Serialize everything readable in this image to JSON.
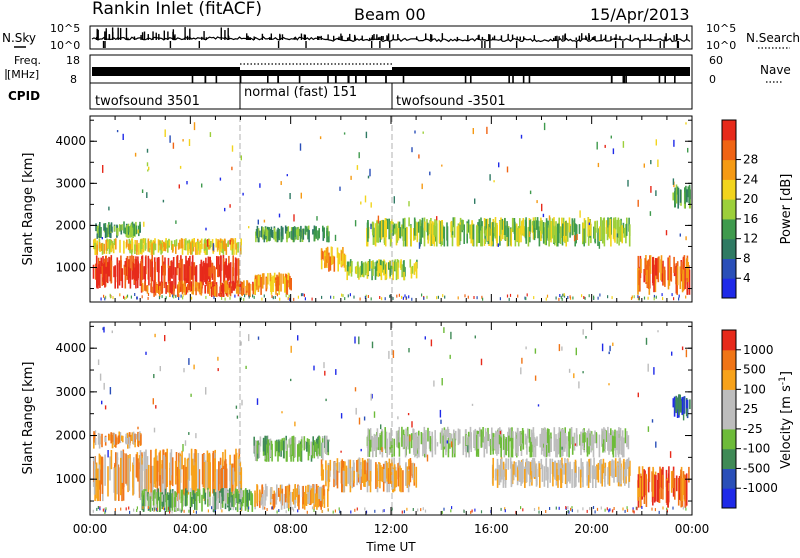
{
  "header": {
    "station": "Rankin Inlet (fitACF)",
    "beam": "Beam 00",
    "date": "15/Apr/2013"
  },
  "aux_panels": {
    "nsky_label": "N.Sky",
    "nsearch_label": "N.Search",
    "noise_top_tick": "10^5",
    "noise_bottom_tick": "10^0",
    "freq_label_1": "Freq.",
    "freq_label_2": "[MHz]",
    "freq_ticks": [
      "18",
      "8"
    ],
    "nave_label": "Nave",
    "nave_ticks": [
      "60",
      "0"
    ],
    "cpid_label": "CPID",
    "cpid_segments": [
      {
        "name": "twofsound 3501",
        "start_h": 0,
        "end_h": 6
      },
      {
        "name": "normal (fast) 151",
        "start_h": 6,
        "end_h": 12
      },
      {
        "name": "twofsound -3501",
        "start_h": 12,
        "end_h": 24
      }
    ]
  },
  "chart_data": [
    {
      "type": "heatmap",
      "panel": "power",
      "ylabel": "Slant Range [km]",
      "ylim": [
        180,
        4600
      ],
      "y_ticks": [
        1000,
        2000,
        3000,
        4000
      ],
      "x_range_h": [
        0,
        24
      ],
      "colorbar": {
        "label": "Power [dB]",
        "ticks": [
          "4",
          "8",
          "12",
          "16",
          "20",
          "24",
          "28"
        ],
        "colors": [
          "#1f2ae8",
          "#2a4fb8",
          "#2f7a63",
          "#3f9a4d",
          "#9ccf3a",
          "#f2d41d",
          "#f59a14",
          "#f06414",
          "#e72a1b"
        ]
      },
      "regions": [
        {
          "t0": 0.1,
          "t1": 6.0,
          "r0": 500,
          "r1": 1300,
          "level": 8
        },
        {
          "t0": 0.1,
          "t1": 6.0,
          "r0": 1300,
          "r1": 1700,
          "level": 5
        },
        {
          "t0": 0.1,
          "t1": 2.0,
          "r0": 1700,
          "r1": 2100,
          "level": 3
        },
        {
          "t0": 2.0,
          "t1": 6.5,
          "r0": 300,
          "r1": 700,
          "level": 7
        },
        {
          "t0": 6.5,
          "t1": 8.0,
          "r0": 350,
          "r1": 900,
          "level": 6
        },
        {
          "t0": 6.5,
          "t1": 9.5,
          "r0": 1600,
          "r1": 2000,
          "level": 3
        },
        {
          "t0": 9.2,
          "t1": 10.2,
          "r0": 900,
          "r1": 1500,
          "level": 6
        },
        {
          "t0": 10.2,
          "t1": 13.0,
          "r0": 700,
          "r1": 1200,
          "level": 4
        },
        {
          "t0": 11.0,
          "t1": 21.5,
          "r0": 1500,
          "r1": 2200,
          "level": 4
        },
        {
          "t0": 21.8,
          "t1": 23.9,
          "r0": 350,
          "r1": 1300,
          "level": 7
        },
        {
          "t0": 23.2,
          "t1": 23.9,
          "r0": 2400,
          "r1": 3000,
          "level": 3
        }
      ]
    },
    {
      "type": "heatmap",
      "panel": "velocity",
      "ylabel": "Slant Range [km]",
      "xlabel": "Time UT",
      "ylim": [
        180,
        4600
      ],
      "y_ticks": [
        1000,
        2000,
        3000,
        4000
      ],
      "x_range_h": [
        0,
        24
      ],
      "x_ticks": [
        "00:00",
        "04:00",
        "08:00",
        "12:00",
        "16:00",
        "20:00",
        "00:00"
      ],
      "colorbar": {
        "label": "Velocity [m s^-1]",
        "ticks": [
          "1000",
          "500",
          "100",
          "25",
          "-25",
          "-100",
          "-500",
          "-1000"
        ],
        "colors": [
          "#1f2ae8",
          "#2a4fb8",
          "#3f8a56",
          "#6dbb39",
          "#bdbdbd",
          "#bdbdbd",
          "#f7a21a",
          "#f07517",
          "#e72a1b"
        ]
      },
      "regions": [
        {
          "t0": 0.1,
          "t1": 6.0,
          "r0": 500,
          "r1": 1700,
          "level": 6
        },
        {
          "t0": 0.1,
          "t1": 2.0,
          "r0": 1700,
          "r1": 2100,
          "level": 6
        },
        {
          "t0": 2.0,
          "t1": 6.5,
          "r0": 250,
          "r1": 800,
          "level": 3
        },
        {
          "t0": 6.5,
          "t1": 9.5,
          "r0": 1400,
          "r1": 2000,
          "level": 3
        },
        {
          "t0": 6.5,
          "t1": 9.5,
          "r0": 300,
          "r1": 900,
          "level": 6
        },
        {
          "t0": 9.2,
          "t1": 13.0,
          "r0": 700,
          "r1": 1500,
          "level": 6
        },
        {
          "t0": 11.0,
          "t1": 21.5,
          "r0": 1500,
          "r1": 2200,
          "level": 4
        },
        {
          "t0": 16.0,
          "t1": 21.5,
          "r0": 800,
          "r1": 1500,
          "level": 5
        },
        {
          "t0": 21.8,
          "t1": 23.9,
          "r0": 350,
          "r1": 1300,
          "level": 7
        },
        {
          "t0": 23.2,
          "t1": 23.9,
          "r0": 2400,
          "r1": 3000,
          "level": 1
        }
      ]
    }
  ]
}
